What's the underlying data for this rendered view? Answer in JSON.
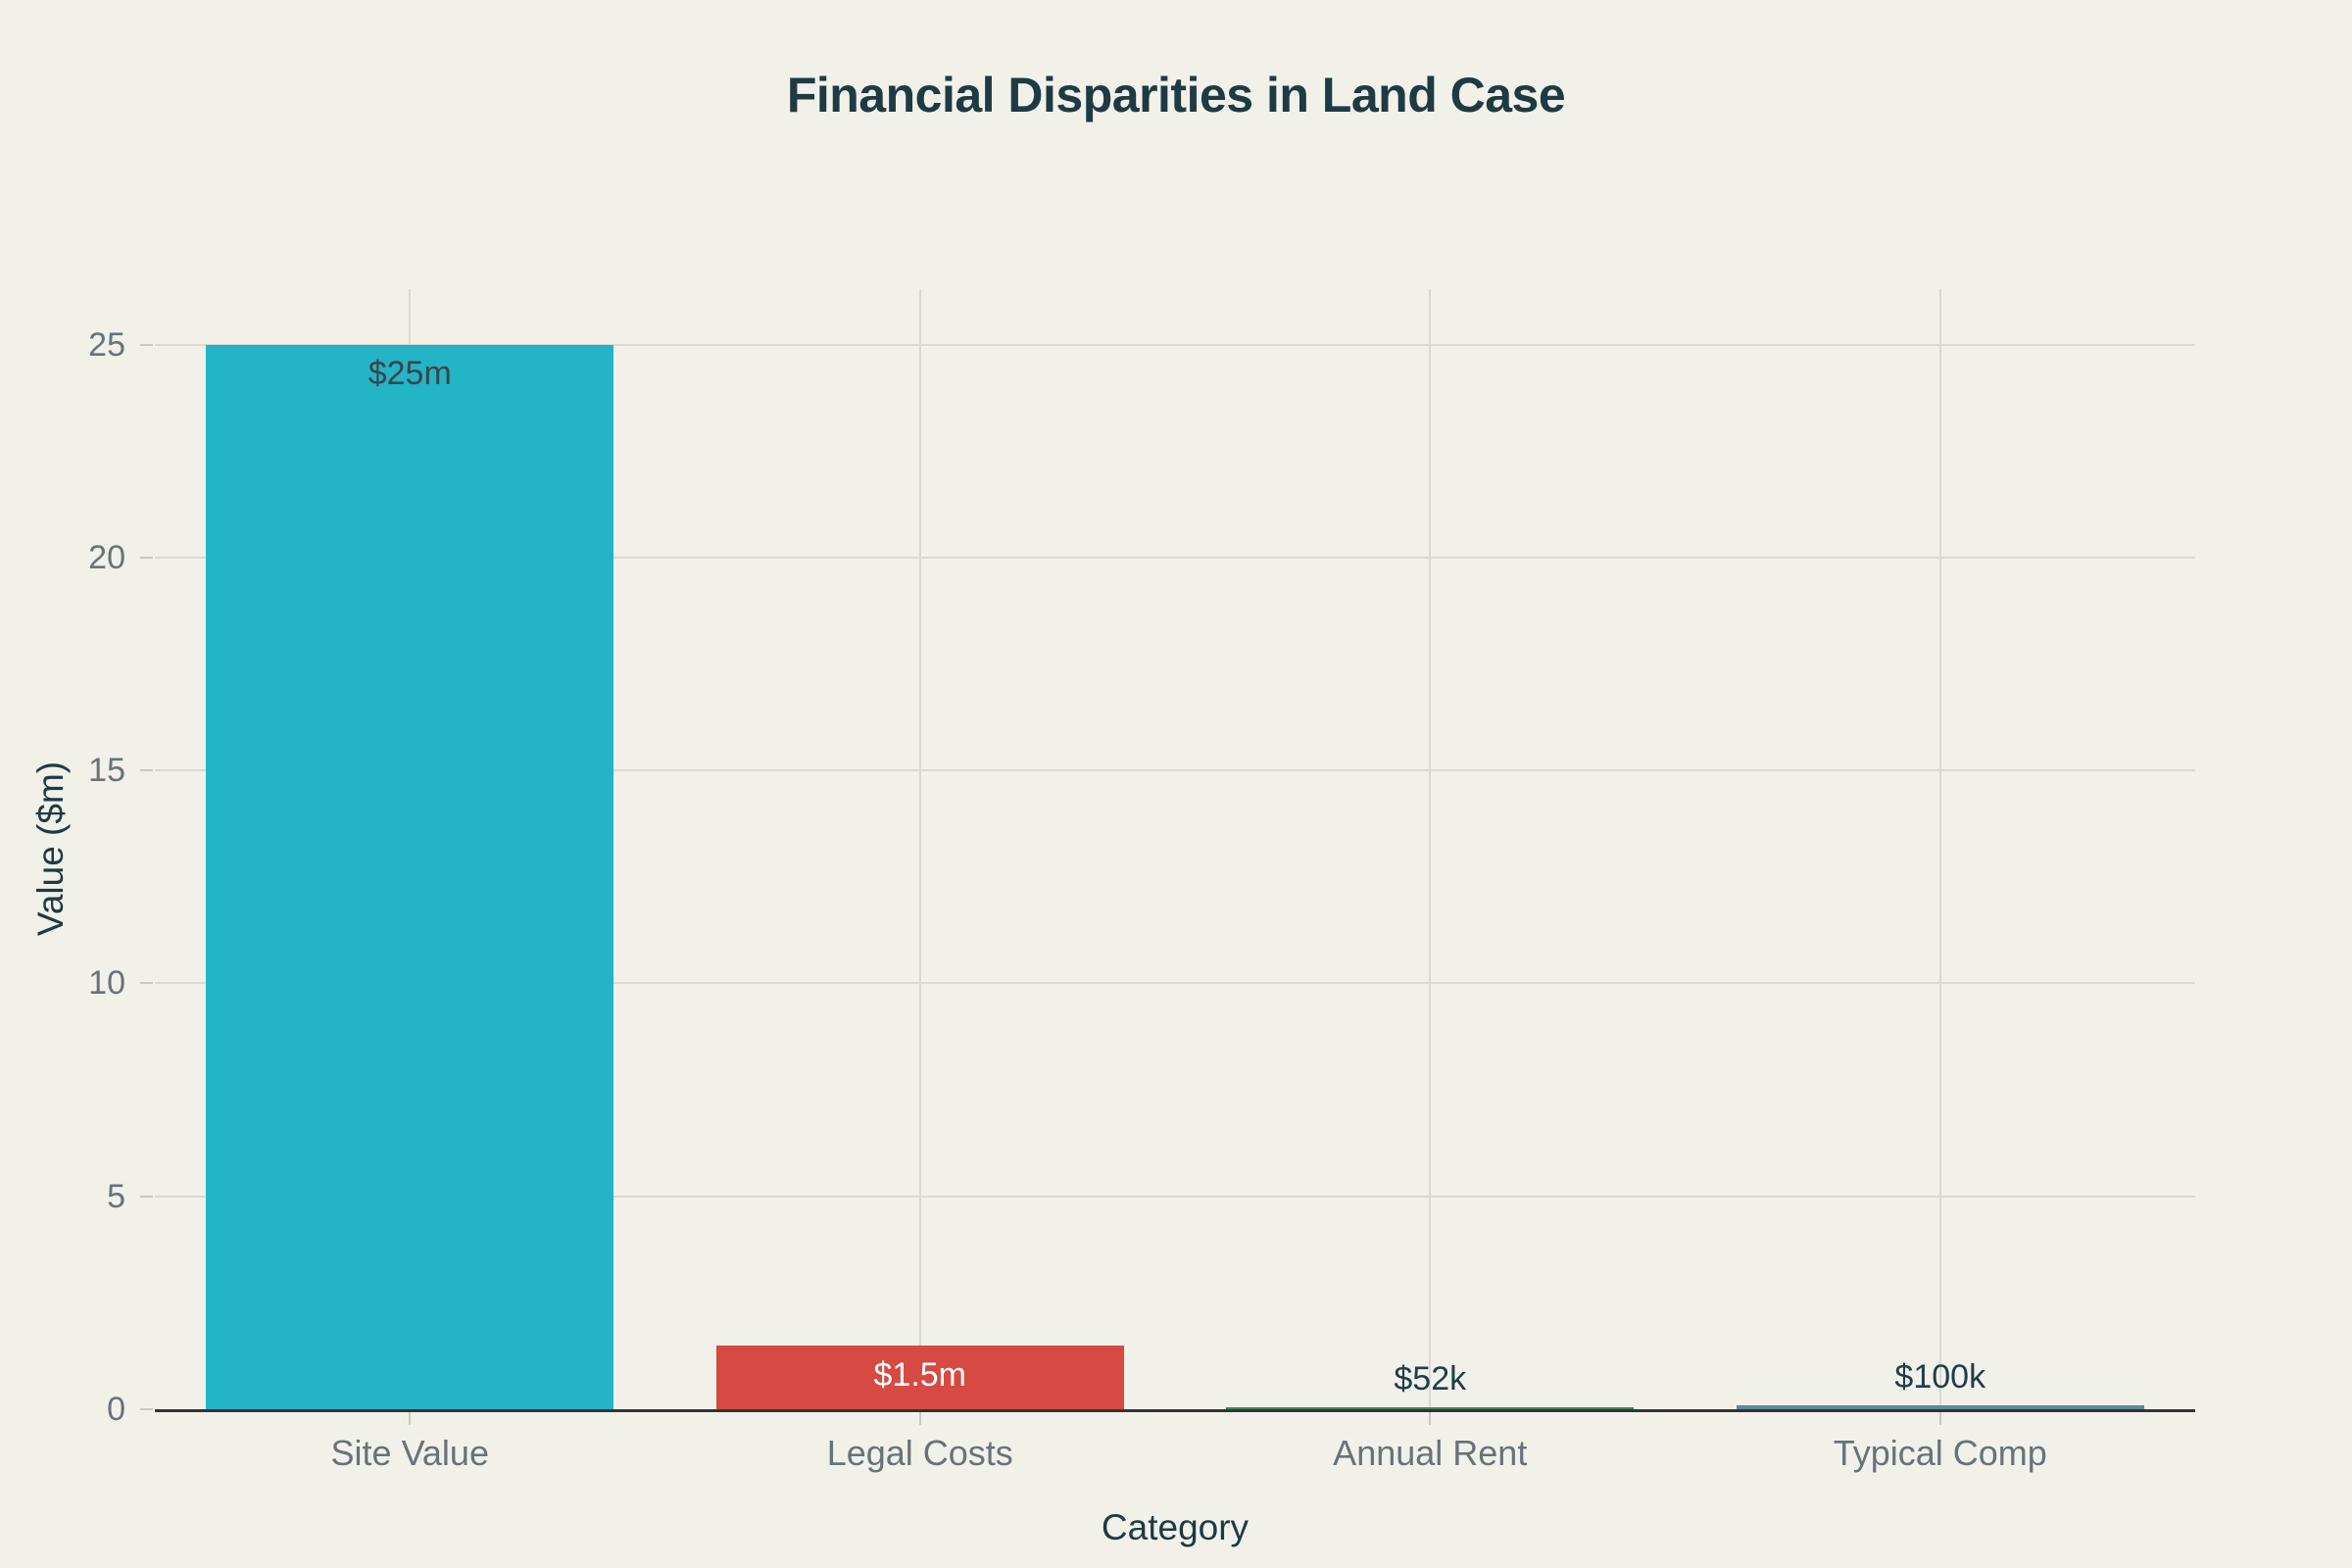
{
  "chart_data": {
    "type": "bar",
    "title": "Financial Disparities in Land Case",
    "xlabel": "Category",
    "ylabel": "Value ($m)",
    "categories": [
      "Site Value",
      "Legal Costs",
      "Annual Rent",
      "Typical Comp"
    ],
    "values": [
      25,
      1.5,
      0.052,
      0.1
    ],
    "bar_labels": [
      "$25m",
      "$1.5m",
      "$52k",
      "$100k"
    ],
    "bar_colors": [
      "#23b4c6",
      "#d64a43",
      "#3f8757",
      "#5f8a99"
    ],
    "bar_label_placements": [
      "inside",
      "inside",
      "outside",
      "outside"
    ],
    "bar_label_colors": [
      "#3d4448",
      "#ffffff",
      "#1d3e49",
      "#1d3e49"
    ],
    "y_ticks": [
      0,
      5,
      10,
      15,
      20,
      25
    ],
    "ylim": [
      0,
      26.3
    ],
    "grid": true,
    "legend": false
  },
  "colors": {
    "background": "#f1f1ea",
    "heading_text": "#1e3a43",
    "muted_text": "#687279",
    "gridline": "#dadad2",
    "tick_mark": "#c9c9c1",
    "axis_line": "#333333"
  }
}
